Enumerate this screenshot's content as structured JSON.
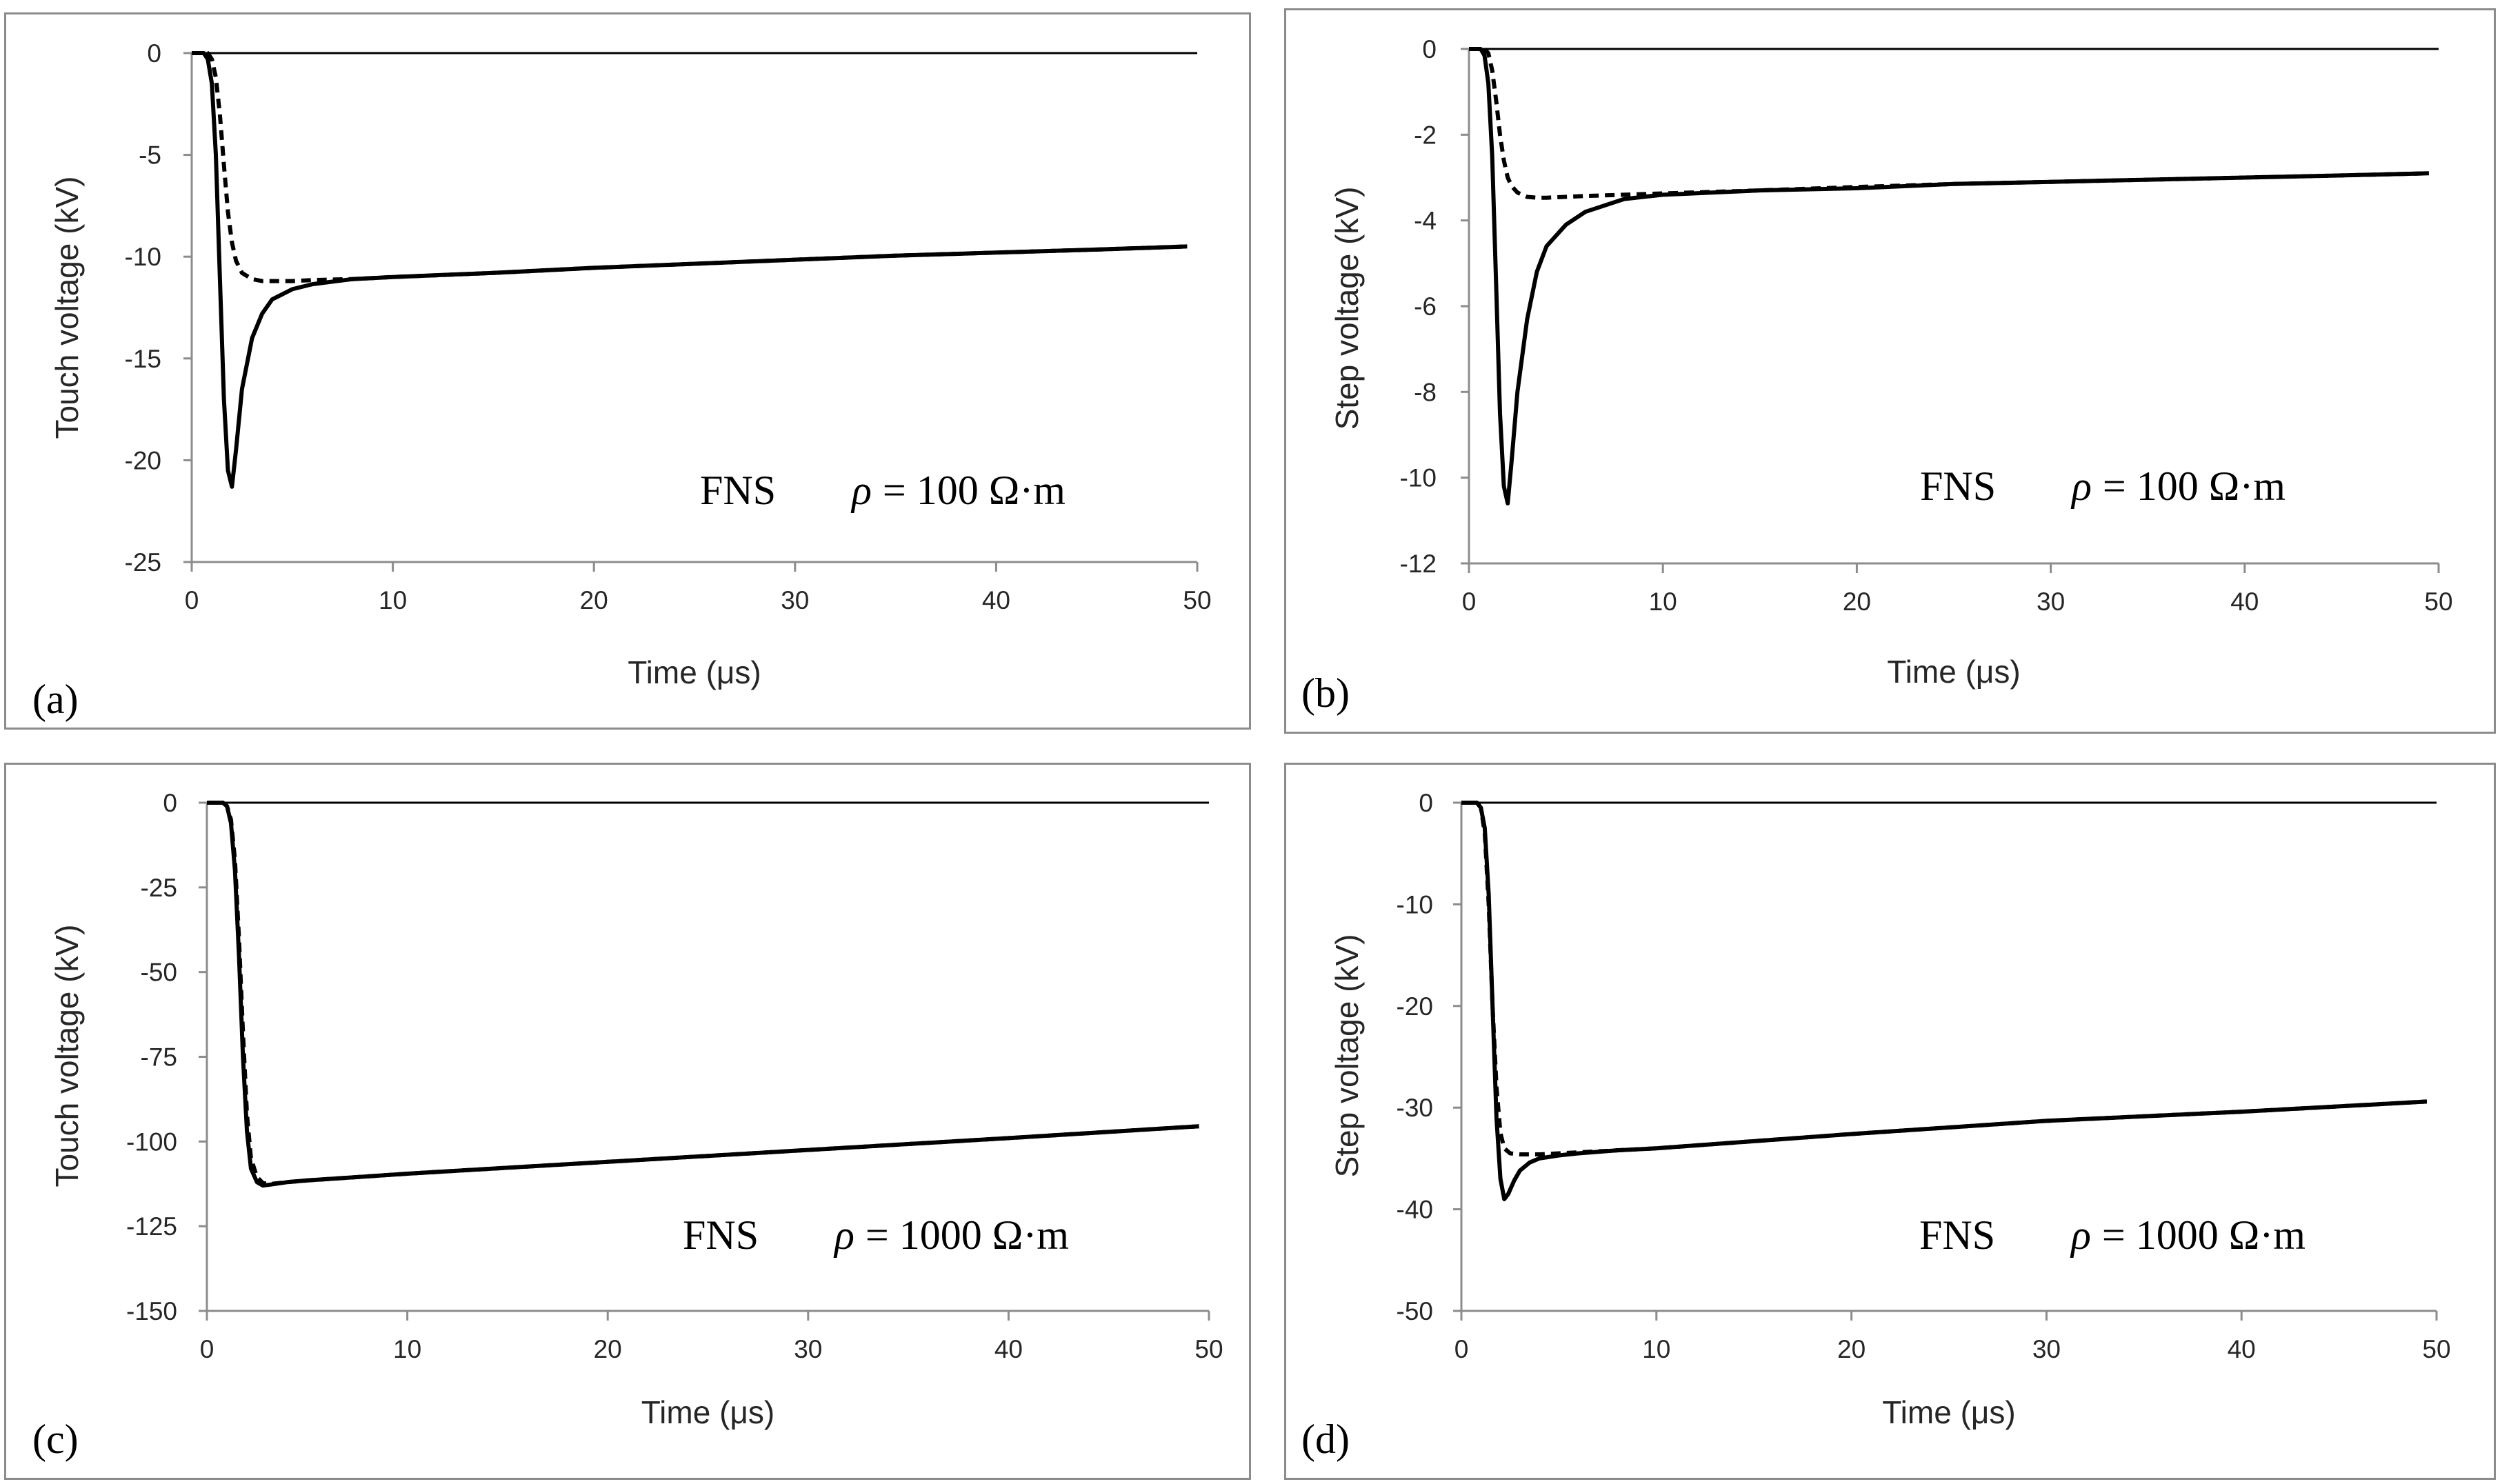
{
  "figure": {
    "chart_data": [
      {
        "id": "a",
        "type": "line",
        "panel_label": "(a)",
        "xlabel": "Time (μs)",
        "ylabel": "Touch voltage (kV)",
        "xlim": [
          0,
          50
        ],
        "ylim": [
          -25,
          0
        ],
        "xticks": [
          0,
          10,
          20,
          30,
          40,
          50
        ],
        "yticks": [
          0,
          -5,
          -10,
          -15,
          -20,
          -25
        ],
        "annotation": {
          "method": "FNS",
          "rho_symbol": "ρ",
          "rho_text": "= 100 Ω·m"
        },
        "series": [
          {
            "name": "solid",
            "style": "solid",
            "x": [
              0,
              0.6,
              0.8,
              1.0,
              1.2,
              1.4,
              1.6,
              1.8,
              2.0,
              2.2,
              2.5,
              3,
              3.5,
              4,
              5,
              6,
              8,
              10,
              15,
              20,
              25,
              30,
              35,
              40,
              45,
              49.5
            ],
            "y": [
              0,
              0,
              -0.3,
              -1.5,
              -5,
              -11,
              -17,
              -20.5,
              -21.3,
              -19.5,
              -16.5,
              -14,
              -12.8,
              -12.1,
              -11.6,
              -11.35,
              -11.1,
              -11.0,
              -10.8,
              -10.55,
              -10.35,
              -10.15,
              -9.95,
              -9.8,
              -9.65,
              -9.5
            ]
          },
          {
            "name": "dashed",
            "style": "dashed",
            "x": [
              0,
              0.8,
              1.0,
              1.2,
              1.4,
              1.6,
              1.8,
              2.0,
              2.2,
              2.5,
              3,
              3.5,
              4,
              5,
              6,
              8,
              10,
              15,
              20,
              25,
              30,
              35,
              40,
              45,
              49.5
            ],
            "y": [
              0,
              0,
              -0.3,
              -1.2,
              -3,
              -5.5,
              -7.8,
              -9.3,
              -10.2,
              -10.8,
              -11.1,
              -11.2,
              -11.2,
              -11.2,
              -11.15,
              -11.1,
              -11.0,
              -10.8,
              -10.55,
              -10.35,
              -10.15,
              -9.95,
              -9.8,
              -9.65,
              -9.5
            ]
          }
        ]
      },
      {
        "id": "b",
        "type": "line",
        "panel_label": "(b)",
        "xlabel": "Time (μs)",
        "ylabel": "Step voltage (kV)",
        "xlim": [
          0,
          50
        ],
        "ylim": [
          -12,
          0
        ],
        "xticks": [
          0,
          10,
          20,
          30,
          40,
          50
        ],
        "yticks": [
          0,
          -2,
          -4,
          -6,
          -8,
          -10,
          -12
        ],
        "annotation": {
          "method": "FNS",
          "rho_symbol": "ρ",
          "rho_text": "= 100 Ω·m"
        },
        "series": [
          {
            "name": "solid",
            "style": "solid",
            "x": [
              0,
              0.6,
              0.8,
              1.0,
              1.2,
              1.4,
              1.6,
              1.8,
              2.0,
              2.2,
              2.5,
              3,
              3.5,
              4,
              5,
              6,
              8,
              10,
              15,
              20,
              25,
              30,
              35,
              40,
              45,
              49.5
            ],
            "y": [
              0,
              0,
              -0.15,
              -0.8,
              -2.5,
              -5.5,
              -8.5,
              -10.2,
              -10.6,
              -9.6,
              -8,
              -6.3,
              -5.2,
              -4.6,
              -4.1,
              -3.8,
              -3.5,
              -3.4,
              -3.3,
              -3.25,
              -3.15,
              -3.1,
              -3.05,
              -3.0,
              -2.95,
              -2.9
            ]
          },
          {
            "name": "dashed",
            "style": "dashed",
            "x": [
              0,
              0.8,
              1.0,
              1.2,
              1.4,
              1.6,
              1.8,
              2.0,
              2.2,
              2.5,
              3,
              3.5,
              4,
              5,
              6,
              8,
              10,
              15,
              20,
              25,
              30,
              35,
              40,
              45,
              49.5
            ],
            "y": [
              0,
              0,
              -0.1,
              -0.5,
              -1.2,
              -2.0,
              -2.6,
              -3.0,
              -3.2,
              -3.35,
              -3.45,
              -3.47,
              -3.47,
              -3.45,
              -3.43,
              -3.4,
              -3.37,
              -3.3,
              -3.22,
              -3.15,
              -3.1,
              -3.05,
              -3.0,
              -2.95,
              -2.9
            ]
          }
        ]
      },
      {
        "id": "c",
        "type": "line",
        "panel_label": "(c)",
        "xlabel": "Time (μs)",
        "ylabel": "Touch voltage (kV)",
        "xlim": [
          0,
          50
        ],
        "ylim": [
          -150,
          0
        ],
        "xticks": [
          0,
          10,
          20,
          30,
          40,
          50
        ],
        "yticks": [
          0,
          -25,
          -50,
          -75,
          -100,
          -125,
          -150
        ],
        "annotation": {
          "method": "FNS",
          "rho_symbol": "ρ",
          "rho_text": "= 1000 Ω·m"
        },
        "series": [
          {
            "name": "solid",
            "style": "solid",
            "x": [
              0,
              0.8,
              1.0,
              1.2,
              1.4,
              1.6,
              1.8,
              2.0,
              2.2,
              2.5,
              2.8,
              3.2,
              4,
              5,
              10,
              20,
              30,
              40,
              49.5
            ],
            "y": [
              0,
              0,
              -1,
              -6,
              -20,
              -45,
              -75,
              -97,
              -108,
              -112,
              -113,
              -112.7,
              -112,
              -111.5,
              -109.5,
              -106,
              -102.5,
              -99,
              -95.5
            ]
          },
          {
            "name": "dashed",
            "style": "dashed",
            "x": [
              0,
              0.8,
              1.0,
              1.2,
              1.4,
              1.6,
              1.8,
              2.0,
              2.2,
              2.5,
              2.8,
              3.2,
              4,
              5,
              10,
              20,
              30,
              40,
              49.5
            ],
            "y": [
              0,
              0,
              -1,
              -5,
              -17,
              -40,
              -68,
              -92,
              -105,
              -110.5,
              -112.3,
              -112.5,
              -112,
              -111.5,
              -109.5,
              -106,
              -102.5,
              -99,
              -95.5
            ]
          }
        ]
      },
      {
        "id": "d",
        "type": "line",
        "panel_label": "(d)",
        "xlabel": "Time (μs)",
        "ylabel": "Step voltage (kV)",
        "xlim": [
          0,
          50
        ],
        "ylim": [
          -50,
          0
        ],
        "xticks": [
          0,
          10,
          20,
          30,
          40,
          50
        ],
        "yticks": [
          0,
          -10,
          -20,
          -30,
          -40,
          -50
        ],
        "annotation": {
          "method": "FNS",
          "rho_symbol": "ρ",
          "rho_text": "= 1000 Ω·m"
        },
        "series": [
          {
            "name": "solid",
            "style": "solid",
            "x": [
              0,
              0.8,
              1.0,
              1.2,
              1.4,
              1.6,
              1.8,
              2.0,
              2.2,
              2.4,
              2.7,
              3,
              3.5,
              4,
              5,
              6,
              8,
              10,
              20,
              30,
              40,
              49.5
            ],
            "y": [
              0,
              0,
              -0.5,
              -2.5,
              -9,
              -20,
              -31,
              -37,
              -39,
              -38.5,
              -37.2,
              -36.2,
              -35.4,
              -35.0,
              -34.7,
              -34.5,
              -34.2,
              -34.0,
              -32.6,
              -31.3,
              -30.4,
              -29.4
            ]
          },
          {
            "name": "dashed",
            "style": "dashed",
            "x": [
              0,
              0.8,
              1.0,
              1.2,
              1.4,
              1.6,
              1.8,
              2.0,
              2.2,
              2.5,
              3,
              3.5,
              4,
              5,
              6,
              8,
              10,
              20,
              30,
              40,
              49.5
            ],
            "y": [
              0,
              0,
              -0.5,
              -3,
              -10,
              -20,
              -28,
              -32.5,
              -34,
              -34.5,
              -34.6,
              -34.6,
              -34.6,
              -34.5,
              -34.4,
              -34.2,
              -34.0,
              -32.6,
              -31.3,
              -30.4,
              -29.4
            ]
          }
        ]
      }
    ]
  }
}
